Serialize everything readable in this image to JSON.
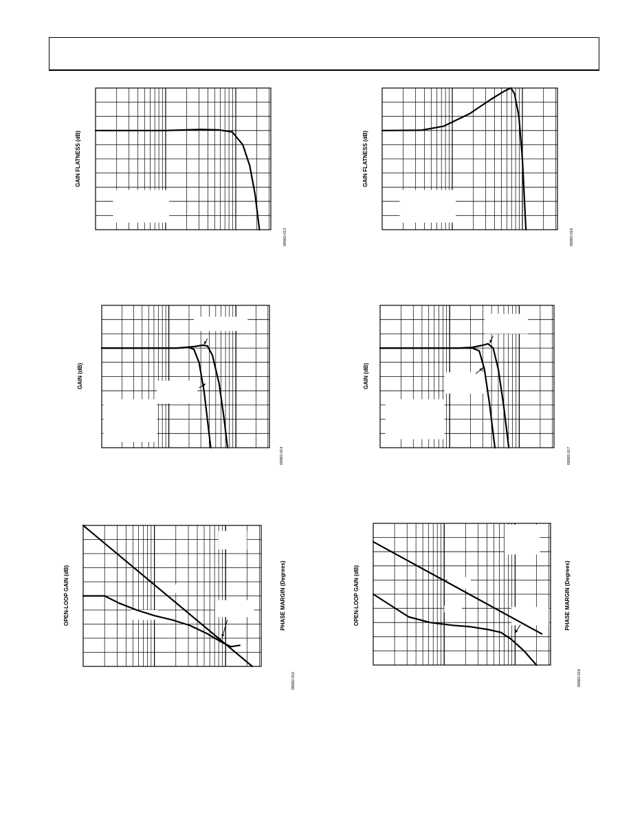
{
  "page": {
    "header": ""
  },
  "chart_data": [
    {
      "id": "c1",
      "type": "line",
      "ylabel": "GAIN FLATNESS (dB)",
      "y2label": "",
      "figure_code": "00082-013",
      "log_decades": 2.5,
      "yDivisions": 10,
      "series": [
        {
          "name": "",
          "points": [
            [
              0,
              7.0
            ],
            [
              0.4,
              7.0
            ],
            [
              0.6,
              7.08
            ],
            [
              0.7,
              7.05
            ],
            [
              0.78,
              6.9
            ],
            [
              0.84,
              6.0
            ],
            [
              0.88,
              4.5
            ],
            [
              0.91,
              2.5
            ],
            [
              0.935,
              0
            ]
          ]
        }
      ],
      "annotations": [],
      "legend_masks": [
        [
          0.1,
          0.72,
          0.42,
          0.95
        ]
      ]
    },
    {
      "id": "c2",
      "type": "line",
      "ylabel": "GAIN FLATNESS (dB)",
      "y2label": "",
      "figure_code": "00082-016",
      "log_decades": 2.5,
      "yDivisions": 10,
      "series": [
        {
          "name": "",
          "points": [
            [
              0,
              7.0
            ],
            [
              0.22,
              7.02
            ],
            [
              0.35,
              7.3
            ],
            [
              0.5,
              8.2
            ],
            [
              0.62,
              9.2
            ],
            [
              0.7,
              9.8
            ],
            [
              0.735,
              10.0
            ],
            [
              0.755,
              9.6
            ],
            [
              0.78,
              8.0
            ],
            [
              0.8,
              5.0
            ],
            [
              0.82,
              0
            ]
          ]
        }
      ],
      "annotations": [],
      "legend_masks": [
        [
          0.1,
          0.72,
          0.42,
          0.95
        ]
      ]
    },
    {
      "id": "c3",
      "type": "line",
      "ylabel": "GAIN (dB)",
      "y2label": "",
      "figure_code": "00082-014",
      "log_decades": 2.5,
      "yDivisions": 10,
      "series": [
        {
          "name": "",
          "points": [
            [
              0,
              7.0
            ],
            [
              0.45,
              7.0
            ],
            [
              0.55,
              7.1
            ],
            [
              0.6,
              7.2
            ],
            [
              0.63,
              7.15
            ],
            [
              0.66,
              6.5
            ],
            [
              0.7,
              4.5
            ],
            [
              0.73,
              2.0
            ],
            [
              0.75,
              0
            ]
          ]
        },
        {
          "name": "",
          "points": [
            [
              0,
              7.0
            ],
            [
              0.45,
              7.0
            ],
            [
              0.52,
              7.05
            ],
            [
              0.55,
              6.9
            ],
            [
              0.58,
              6.0
            ],
            [
              0.61,
              4.0
            ],
            [
              0.63,
              2.0
            ],
            [
              0.65,
              0
            ]
          ]
        }
      ],
      "annotations": [
        {
          "x1": 0.63,
          "y1": 7.65,
          "x2": 0.61,
          "y2": 7.25
        },
        {
          "x1": 0.58,
          "y1": 4.2,
          "x2": 0.62,
          "y2": 4.5
        }
      ],
      "legend_masks": [
        [
          0.01,
          0.66,
          0.33,
          0.96
        ],
        [
          0.33,
          0.53,
          0.57,
          0.69
        ],
        [
          0.55,
          0.08,
          0.87,
          0.18
        ]
      ]
    },
    {
      "id": "c4",
      "type": "line",
      "ylabel": "GAIN (dB)",
      "y2label": "",
      "figure_code": "00082-017",
      "log_decades": 2.5,
      "yDivisions": 10,
      "series": [
        {
          "name": "",
          "points": [
            [
              0,
              7.0
            ],
            [
              0.45,
              7.0
            ],
            [
              0.53,
              7.05
            ],
            [
              0.59,
              7.2
            ],
            [
              0.62,
              7.3
            ],
            [
              0.65,
              7.0
            ],
            [
              0.68,
              5.5
            ],
            [
              0.71,
              3.0
            ],
            [
              0.74,
              0
            ]
          ]
        },
        {
          "name": "",
          "points": [
            [
              0,
              7.0
            ],
            [
              0.45,
              7.0
            ],
            [
              0.53,
              7.0
            ],
            [
              0.57,
              6.8
            ],
            [
              0.6,
              5.5
            ],
            [
              0.63,
              3.0
            ],
            [
              0.66,
              0
            ]
          ]
        }
      ],
      "annotations": [
        {
          "x1": 0.65,
          "y1": 7.85,
          "x2": 0.63,
          "y2": 7.35
        },
        {
          "x1": 0.55,
          "y1": 5.2,
          "x2": 0.59,
          "y2": 5.6
        }
      ],
      "legend_masks": [
        [
          0.03,
          0.66,
          0.37,
          0.94
        ],
        [
          0.37,
          0.47,
          0.61,
          0.62
        ],
        [
          0.6,
          0.06,
          0.85,
          0.2
        ]
      ]
    },
    {
      "id": "c5",
      "type": "line",
      "ylabel": "OPEN-LOOP GAIN (dB)",
      "y2label": "PHASE MARGIN (Degrees)",
      "figure_code": "00082-015",
      "log_decades": 2.5,
      "yDivisions": 10,
      "series": [
        {
          "name": "",
          "points": [
            [
              0,
              10
            ],
            [
              0.95,
              0
            ]
          ]
        },
        {
          "name": "",
          "points": [
            [
              0,
              5.0
            ],
            [
              0.12,
              5.0
            ],
            [
              0.2,
              4.5
            ],
            [
              0.3,
              4.0
            ],
            [
              0.4,
              3.6
            ],
            [
              0.5,
              3.3
            ],
            [
              0.6,
              2.9
            ],
            [
              0.7,
              2.3
            ],
            [
              0.78,
              1.7
            ],
            [
              0.83,
              1.4
            ],
            [
              0.88,
              1.5
            ]
          ]
        }
      ],
      "annotations": [
        {
          "x1": 0.81,
          "y1": 3.3,
          "x2": 0.78,
          "y2": 2.05
        }
      ],
      "legend_masks": [
        [
          0.76,
          0.04,
          0.92,
          0.17
        ],
        [
          0.44,
          0.42,
          0.56,
          0.48
        ],
        [
          0.27,
          0.6,
          0.42,
          0.67
        ],
        [
          0.74,
          0.53,
          0.96,
          0.65
        ]
      ]
    },
    {
      "id": "c6",
      "type": "line",
      "ylabel": "OPEN-LOOP GAIN (dB)",
      "y2label": "PHASE MARGIN (Degrees)",
      "figure_code": "00082-018",
      "log_decades": 2.5,
      "yDivisions": 10,
      "series": [
        {
          "name": "",
          "points": [
            [
              0,
              8.7
            ],
            [
              0.95,
              2.2
            ]
          ]
        },
        {
          "name": "",
          "points": [
            [
              0,
              5.0
            ],
            [
              0.1,
              4.2
            ],
            [
              0.2,
              3.4
            ],
            [
              0.32,
              3.0
            ],
            [
              0.45,
              2.8
            ],
            [
              0.55,
              2.7
            ],
            [
              0.65,
              2.5
            ],
            [
              0.72,
              2.3
            ],
            [
              0.78,
              1.8
            ],
            [
              0.85,
              1.0
            ],
            [
              0.92,
              0
            ]
          ]
        }
      ],
      "annotations": [
        {
          "x1": 0.83,
          "y1": 2.85,
          "x2": 0.8,
          "y2": 2.25
        }
      ],
      "legend_masks": [
        [
          0.74,
          0.01,
          0.94,
          0.22
        ],
        [
          0.42,
          0.38,
          0.55,
          0.46
        ],
        [
          0.4,
          0.58,
          0.5,
          0.63
        ],
        [
          0.78,
          0.59,
          0.99,
          0.72
        ]
      ]
    }
  ]
}
